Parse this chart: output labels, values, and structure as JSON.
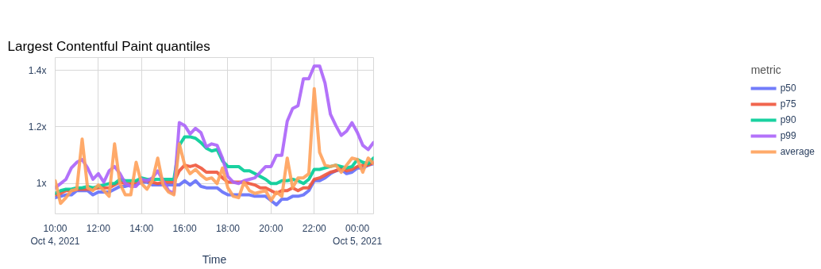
{
  "chart_data": {
    "type": "line",
    "title": "Largest Contentful Paint quantiles",
    "xlabel": "Time",
    "legend_title": "metric",
    "x": [
      "2021-10-04T10:00",
      "2021-10-04T10:15",
      "2021-10-04T10:30",
      "2021-10-04T10:45",
      "2021-10-04T11:00",
      "2021-10-04T11:15",
      "2021-10-04T11:30",
      "2021-10-04T11:45",
      "2021-10-04T12:00",
      "2021-10-04T12:15",
      "2021-10-04T12:30",
      "2021-10-04T12:45",
      "2021-10-04T13:00",
      "2021-10-04T13:15",
      "2021-10-04T13:30",
      "2021-10-04T13:45",
      "2021-10-04T14:00",
      "2021-10-04T14:15",
      "2021-10-04T14:30",
      "2021-10-04T14:45",
      "2021-10-04T15:00",
      "2021-10-04T15:15",
      "2021-10-04T15:30",
      "2021-10-04T15:45",
      "2021-10-04T16:00",
      "2021-10-04T16:15",
      "2021-10-04T16:30",
      "2021-10-04T16:45",
      "2021-10-04T17:00",
      "2021-10-04T17:15",
      "2021-10-04T17:30",
      "2021-10-04T17:45",
      "2021-10-04T18:00",
      "2021-10-04T18:15",
      "2021-10-04T18:30",
      "2021-10-04T18:45",
      "2021-10-04T19:00",
      "2021-10-04T19:15",
      "2021-10-04T19:30",
      "2021-10-04T19:45",
      "2021-10-04T20:00",
      "2021-10-04T20:15",
      "2021-10-04T20:30",
      "2021-10-04T20:45",
      "2021-10-04T21:00",
      "2021-10-04T21:15",
      "2021-10-04T21:30",
      "2021-10-04T21:45",
      "2021-10-04T22:00",
      "2021-10-04T22:15",
      "2021-10-04T22:30",
      "2021-10-04T22:45",
      "2021-10-04T23:00",
      "2021-10-04T23:15",
      "2021-10-04T23:30",
      "2021-10-04T23:45",
      "2021-10-05T00:00",
      "2021-10-05T00:15",
      "2021-10-05T00:30",
      "2021-10-05T00:45"
    ],
    "series": [
      {
        "name": "p50",
        "color": "#636efa",
        "values": [
          0.95,
          0.955,
          0.96,
          0.96,
          0.975,
          0.975,
          0.975,
          0.96,
          0.97,
          0.97,
          0.97,
          0.98,
          0.99,
          0.99,
          0.995,
          0.995,
          1.005,
          1.005,
          0.995,
          0.995,
          0.995,
          0.995,
          0.995,
          0.995,
          1.01,
          0.995,
          1.01,
          0.99,
          0.985,
          0.985,
          0.985,
          0.97,
          0.96,
          0.96,
          0.96,
          0.96,
          0.96,
          0.955,
          0.955,
          0.955,
          0.94,
          0.925,
          0.945,
          0.945,
          0.955,
          0.955,
          0.96,
          0.975,
          1.01,
          1.01,
          1.02,
          1.035,
          1.045,
          1.05,
          1.035,
          1.04,
          1.055,
          1.055,
          1.065,
          1.07
        ]
      },
      {
        "name": "p75",
        "color": "#ef553b",
        "values": [
          0.96,
          0.965,
          0.975,
          0.975,
          0.98,
          0.98,
          0.98,
          0.98,
          0.985,
          0.985,
          0.985,
          0.995,
          1.005,
          1.0,
          1.0,
          1.005,
          1.01,
          1.01,
          1.005,
          1.0,
          1.005,
          1.005,
          1.005,
          1.045,
          1.065,
          1.06,
          1.065,
          1.055,
          1.04,
          1.04,
          1.04,
          1.02,
          1.005,
          1.005,
          1.005,
          1.005,
          1.0,
          0.995,
          0.985,
          0.985,
          0.975,
          0.965,
          0.975,
          0.975,
          0.985,
          0.975,
          0.985,
          0.985,
          1.015,
          1.02,
          1.03,
          1.04,
          1.045,
          1.055,
          1.045,
          1.05,
          1.06,
          1.065,
          1.065,
          1.075
        ]
      },
      {
        "name": "p90",
        "color": "#00cc96",
        "values": [
          0.965,
          0.975,
          0.98,
          0.98,
          0.985,
          0.985,
          0.99,
          0.985,
          0.99,
          0.995,
          1.0,
          1.0,
          1.015,
          1.01,
          1.01,
          1.01,
          1.02,
          1.015,
          1.015,
          1.015,
          1.015,
          1.015,
          1.015,
          1.135,
          1.165,
          1.165,
          1.16,
          1.145,
          1.125,
          1.115,
          1.12,
          1.08,
          1.06,
          1.06,
          1.06,
          1.045,
          1.045,
          1.035,
          1.025,
          1.015,
          1.0,
          1.0,
          1.01,
          1.01,
          1.015,
          1.01,
          1.0,
          1.015,
          1.05,
          1.05,
          1.055,
          1.06,
          1.065,
          1.06,
          1.055,
          1.06,
          1.085,
          1.075,
          1.07,
          1.09
        ]
      },
      {
        "name": "p99",
        "color": "#ab63fa",
        "values": [
          0.985,
          1.0,
          1.015,
          1.055,
          1.075,
          1.085,
          1.055,
          1.015,
          1.035,
          1.005,
          1.045,
          1.06,
          1.035,
          1.0,
          0.99,
          0.99,
          1.015,
          1.01,
          1.02,
          1.045,
          1.01,
          0.975,
          0.965,
          1.215,
          1.205,
          1.175,
          1.195,
          1.18,
          1.13,
          1.14,
          1.135,
          1.09,
          1.025,
          1.005,
          1.0,
          1.01,
          1.015,
          1.02,
          1.04,
          1.06,
          1.06,
          1.1,
          1.1,
          1.22,
          1.265,
          1.275,
          1.37,
          1.37,
          1.415,
          1.415,
          1.355,
          1.245,
          1.205,
          1.17,
          1.185,
          1.215,
          1.18,
          1.135,
          1.12,
          1.145
        ]
      },
      {
        "name": "average",
        "color": "#ffa15a",
        "values": [
          1.01,
          0.93,
          0.95,
          0.975,
          0.98,
          1.157,
          0.985,
          0.975,
          0.995,
          0.975,
          0.955,
          1.14,
          1.0,
          0.96,
          0.96,
          1.075,
          1.0,
          0.98,
          1.01,
          1.09,
          0.995,
          0.97,
          0.96,
          1.14,
          1.065,
          1.035,
          1.05,
          1.03,
          1.015,
          1.02,
          1.0,
          1.055,
          0.985,
          0.955,
          0.95,
          1.005,
          0.975,
          0.965,
          0.97,
          0.975,
          0.94,
          0.97,
          0.955,
          1.09,
          0.985,
          1.02,
          1.02,
          1.035,
          1.335,
          1.11,
          1.065,
          1.06,
          1.065,
          1.04,
          1.065,
          1.09,
          1.085,
          1.04,
          1.09,
          1.07
        ]
      }
    ],
    "xlim": [
      "2021-10-04T10:00",
      "2021-10-05T00:45"
    ],
    "xticks": [
      {
        "value": "2021-10-04T10:00",
        "label": "10:00\nOct 4, 2021"
      },
      {
        "value": "2021-10-04T12:00",
        "label": "12:00"
      },
      {
        "value": "2021-10-04T14:00",
        "label": "14:00"
      },
      {
        "value": "2021-10-04T16:00",
        "label": "16:00"
      },
      {
        "value": "2021-10-04T18:00",
        "label": "18:00"
      },
      {
        "value": "2021-10-04T20:00",
        "label": "20:00"
      },
      {
        "value": "2021-10-04T22:00",
        "label": "22:00"
      },
      {
        "value": "2021-10-05T00:00",
        "label": "00:00\nOct 5, 2021"
      }
    ],
    "ylim": [
      0.893,
      1.445
    ],
    "yticks": [
      {
        "value": 1,
        "label": "1x"
      },
      {
        "value": 1.2,
        "label": "1.2x"
      },
      {
        "value": 1.4,
        "label": "1.4x"
      }
    ],
    "grid": true,
    "legend": "right"
  }
}
